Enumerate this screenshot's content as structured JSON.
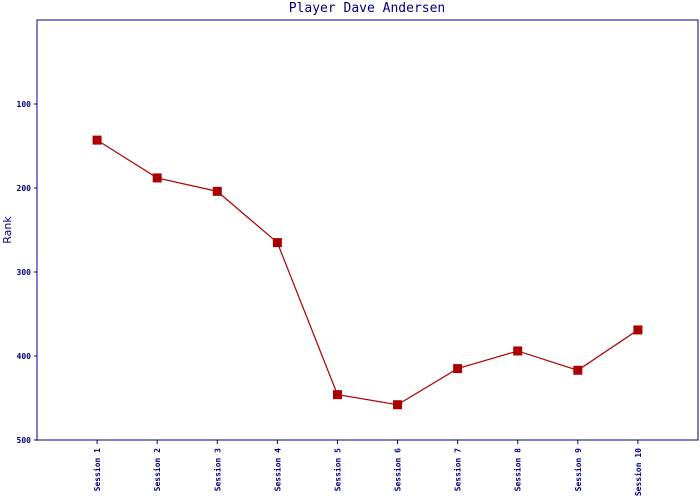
{
  "chart_data": {
    "type": "line",
    "title": "Player Dave Andersen",
    "y_label": "Rank",
    "categories": [
      "Session 1",
      "Session 2",
      "Session 3",
      "Session 4",
      "Session 5",
      "Session 6",
      "Session 7",
      "Session 8",
      "Session 9",
      "Session 10"
    ],
    "series": [
      {
        "name": "Rank",
        "color": "#aa0000",
        "values": [
          143,
          188,
          204,
          265,
          446,
          458,
          415,
          394,
          417,
          369
        ]
      }
    ],
    "ylim": [
      0,
      500
    ],
    "yticks": [
      100,
      200,
      300,
      400,
      500
    ],
    "y_inverted": true,
    "axis_color": "#000080"
  }
}
